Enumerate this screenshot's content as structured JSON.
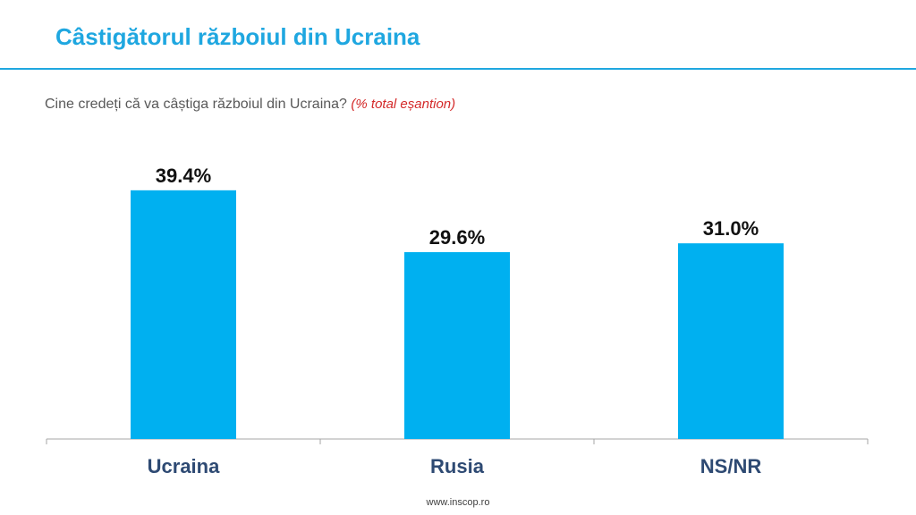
{
  "title": "Câstigătorul războiul din Ucraina",
  "question": {
    "text": "Cine credeți că va câștiga războiul din Ucraina?",
    "note": "(% total eșantion)"
  },
  "footer": "www.inscop.ro",
  "colors": {
    "bar": "#00b0f0",
    "title": "#1fa7e0",
    "axis_label": "#2e4a73",
    "value_label": "#111111",
    "note": "#d42a2a"
  },
  "chart_data": {
    "type": "bar",
    "categories": [
      "Ucraina",
      "Rusia",
      "NS/NR"
    ],
    "values": [
      39.4,
      29.6,
      31.0
    ],
    "value_labels": [
      "39.4%",
      "29.6%",
      "31.0%"
    ],
    "ylim": [
      0,
      50
    ],
    "grid": false,
    "legend": "none"
  }
}
